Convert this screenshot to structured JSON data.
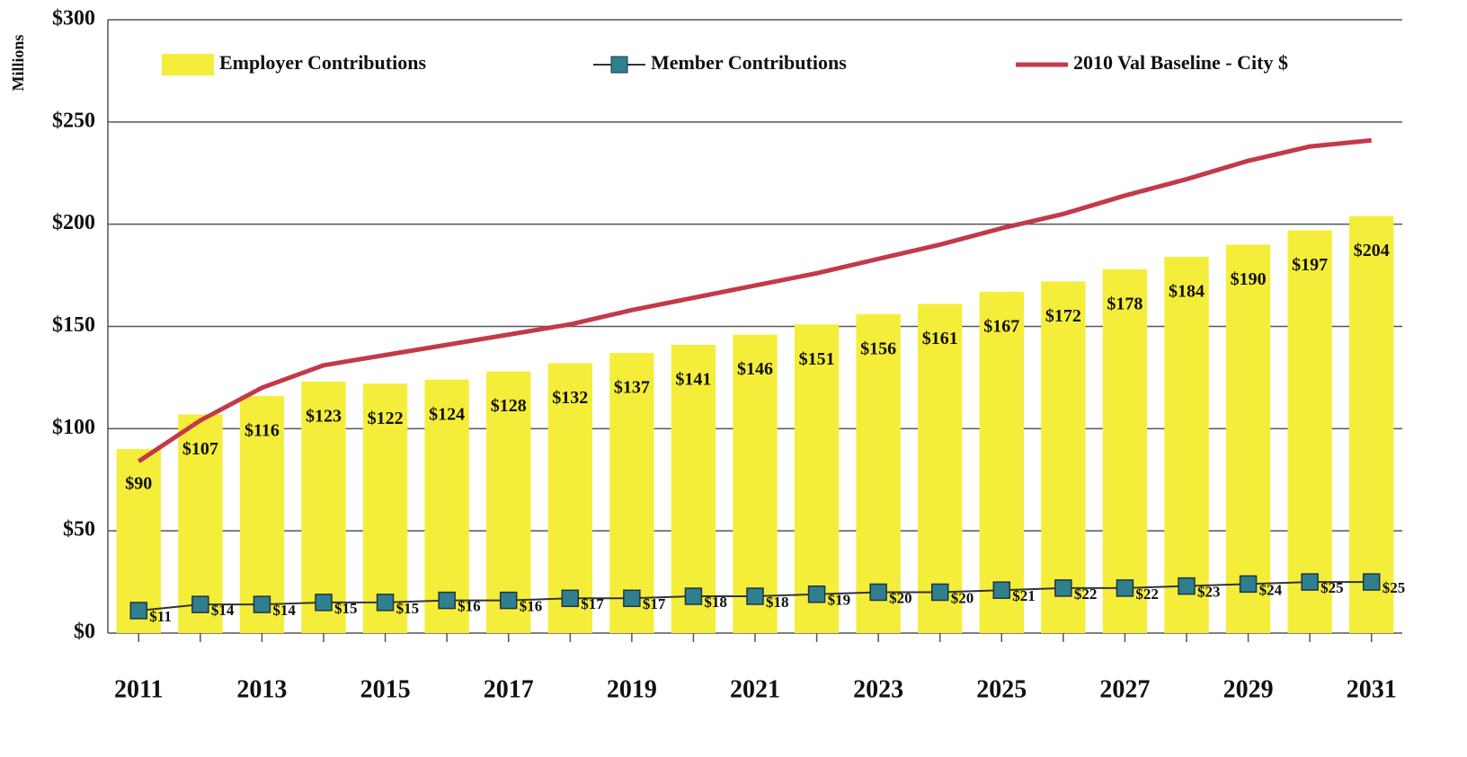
{
  "chart_data": {
    "type": "bar_line",
    "y_axis_label": "Millions",
    "categories": [
      "2011",
      null,
      "2013",
      null,
      "2015",
      null,
      "2017",
      null,
      "2019",
      null,
      "2021",
      null,
      "2023",
      null,
      "2025",
      null,
      "2027",
      null,
      "2029",
      null,
      "2031"
    ],
    "series": [
      {
        "name": "Employer Contributions",
        "type": "bar",
        "color": "#f4ee3a",
        "values": [
          90,
          107,
          116,
          123,
          122,
          124,
          128,
          132,
          137,
          141,
          146,
          151,
          156,
          161,
          167,
          172,
          178,
          184,
          190,
          197,
          204
        ],
        "value_labels": [
          "$90",
          "$107",
          "$116",
          "$123",
          "$122",
          "$124",
          "$128",
          "$132",
          "$137",
          "$141",
          "$146",
          "$151",
          "$156",
          "$161",
          "$167",
          "$172",
          "$178",
          "$184",
          "$190",
          "$197",
          "$204"
        ]
      },
      {
        "name": "Member Contributions",
        "type": "line_marker",
        "color": "#2f7f8f",
        "values": [
          11,
          14,
          14,
          15,
          15,
          16,
          16,
          17,
          17,
          18,
          18,
          19,
          20,
          20,
          21,
          22,
          22,
          23,
          24,
          25,
          25
        ],
        "value_labels": [
          "$11",
          "$14",
          "$14",
          "$15",
          "$15",
          "$16",
          "$16",
          "$17",
          "$17",
          "$18",
          "$18",
          "$19",
          "$20",
          "$20",
          "$21",
          "$22",
          "$22",
          "$23",
          "$24",
          "$25",
          "$25"
        ]
      },
      {
        "name": "2010 Val Baseline - City $",
        "type": "line",
        "color": "#c23a4a",
        "values": [
          84,
          104,
          120,
          131,
          136,
          141,
          146,
          151,
          158,
          164,
          170,
          176,
          183,
          190,
          198,
          205,
          214,
          222,
          231,
          238,
          241
        ]
      }
    ],
    "ylim": [
      0,
      300
    ],
    "yticks": [
      {
        "value": 0,
        "label": "$0"
      },
      {
        "value": 50,
        "label": "$50"
      },
      {
        "value": 100,
        "label": "$100"
      },
      {
        "value": 150,
        "label": "$150"
      },
      {
        "value": 200,
        "label": "$200"
      },
      {
        "value": 250,
        "label": "$250"
      },
      {
        "value": 300,
        "label": "$300"
      }
    ],
    "grid": true,
    "legend": "top"
  }
}
